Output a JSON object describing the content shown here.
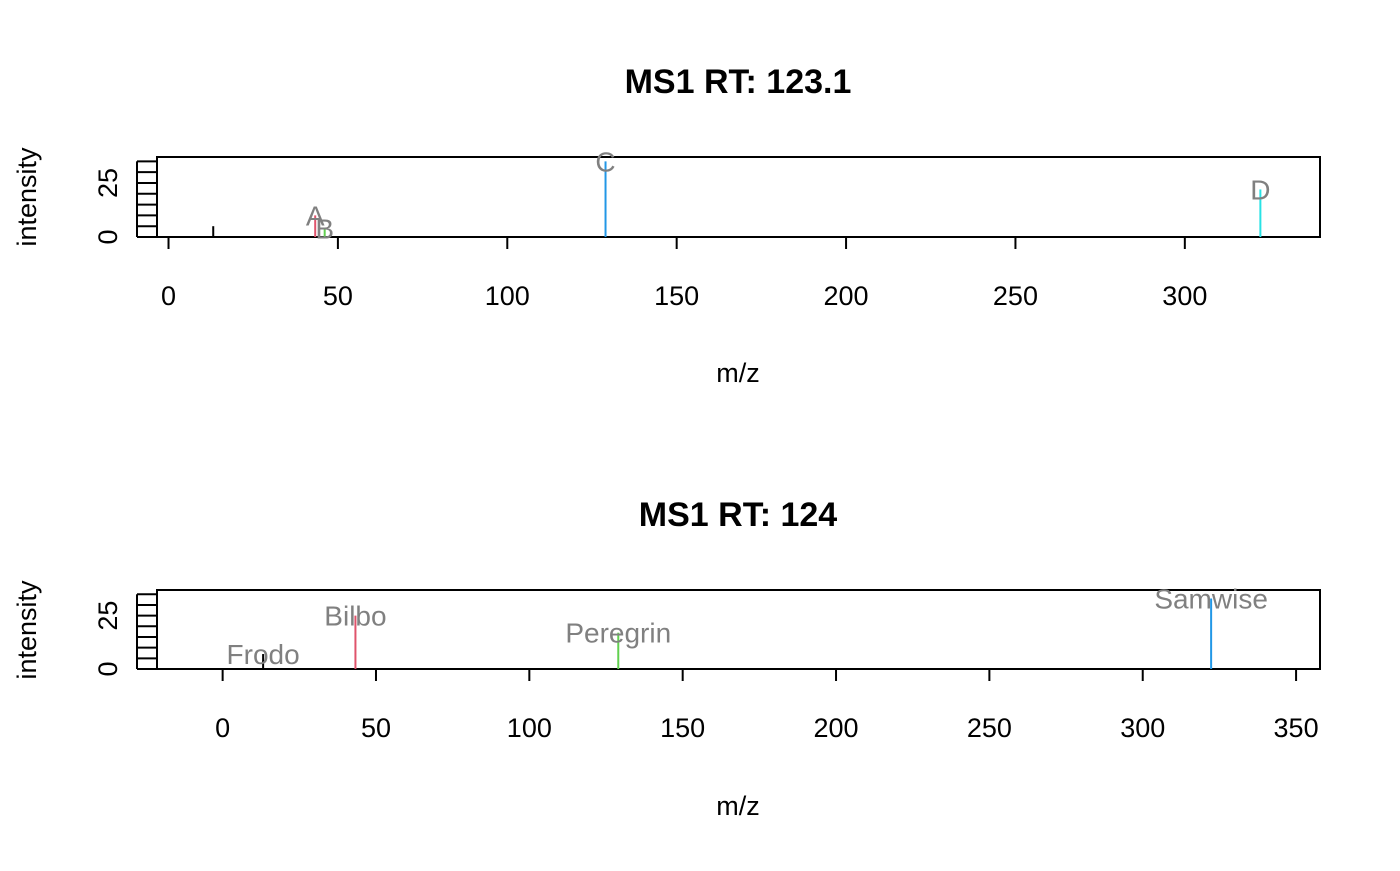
{
  "chart_data": [
    {
      "type": "bar",
      "title": "MS1 RT: 123.1",
      "xlabel": "m/z",
      "ylabel": "intensity",
      "xlim": [
        -3.4,
        339.9
      ],
      "ylim": [
        0,
        37
      ],
      "x_ticks": [
        "0",
        "50",
        "100",
        "150",
        "200",
        "250",
        "300"
      ],
      "x_tick_values": [
        0,
        50,
        100,
        150,
        200,
        250,
        300
      ],
      "y_ticks": [
        "0",
        "25"
      ],
      "y_tick_values": [
        0,
        25
      ],
      "y_minor_tick_values": [
        0,
        5,
        10,
        15,
        20,
        25,
        30,
        35
      ],
      "peaks": [
        {
          "mz": 13.2,
          "intensity": 5,
          "color": "#000000",
          "label": ""
        },
        {
          "mz": 43.3,
          "intensity": 10,
          "color": "#DF536B",
          "label": "A"
        },
        {
          "mz": 46.1,
          "intensity": 4,
          "color": "#61D04F",
          "label": "B"
        },
        {
          "mz": 129.0,
          "intensity": 35,
          "color": "#2297E6",
          "label": "C"
        },
        {
          "mz": 322.3,
          "intensity": 22,
          "color": "#28E2E5",
          "label": "D"
        }
      ],
      "label_color": "#808080",
      "grid": false,
      "legend": "none"
    },
    {
      "type": "bar",
      "title": "MS1 RT: 124",
      "xlabel": "m/z",
      "ylabel": "intensity",
      "xlim": [
        -21.4,
        357.8
      ],
      "ylim": [
        0,
        37
      ],
      "x_ticks": [
        "0",
        "50",
        "100",
        "150",
        "200",
        "250",
        "300",
        "350"
      ],
      "x_tick_values": [
        0,
        50,
        100,
        150,
        200,
        250,
        300,
        350
      ],
      "y_ticks": [
        "0",
        "25"
      ],
      "y_tick_values": [
        0,
        25
      ],
      "y_minor_tick_values": [
        0,
        5,
        10,
        15,
        20,
        25,
        30,
        35
      ],
      "peaks": [
        {
          "mz": 13.2,
          "intensity": 7,
          "color": "#000000",
          "label": "Frodo"
        },
        {
          "mz": 43.3,
          "intensity": 25,
          "color": "#DF536B",
          "label": "Bilbo"
        },
        {
          "mz": 129.0,
          "intensity": 17,
          "color": "#61D04F",
          "label": "Peregrin"
        },
        {
          "mz": 322.3,
          "intensity": 33,
          "color": "#2297E6",
          "label": "Samwise"
        }
      ],
      "label_color": "#808080",
      "grid": false,
      "legend": "none"
    }
  ]
}
